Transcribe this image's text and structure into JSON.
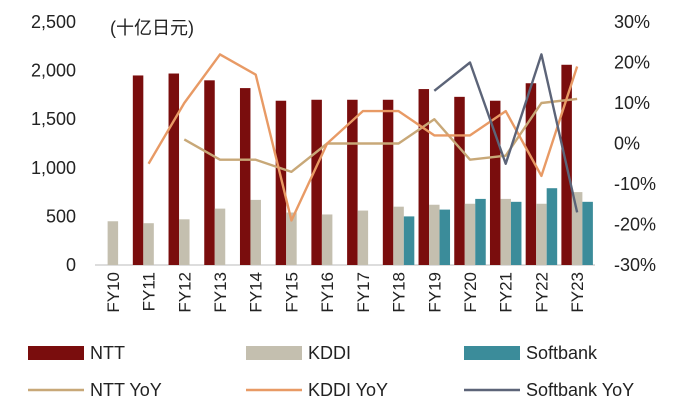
{
  "chart_data": {
    "type": "bar",
    "unit_label": "(十亿日元)",
    "categories": [
      "FY10",
      "FY11",
      "FY12",
      "FY13",
      "FY14",
      "FY15",
      "FY16",
      "FY17",
      "FY18",
      "FY19",
      "FY20",
      "FY21",
      "FY22",
      "FY23"
    ],
    "y_left": {
      "min": 0,
      "max": 2500,
      "ticks": [
        0,
        500,
        1000,
        1500,
        2000,
        2500
      ],
      "tick_labels": [
        "0",
        "500",
        "1,000",
        "1,500",
        "2,000",
        "2,500"
      ]
    },
    "y_right": {
      "min": -30,
      "max": 30,
      "ticks": [
        -30,
        -20,
        -10,
        0,
        10,
        20,
        30
      ],
      "tick_labels": [
        "-30%",
        "-20%",
        "-10%",
        "0%",
        "10%",
        "20%",
        "30%"
      ]
    },
    "colors": {
      "NTT": "#7a0d0d",
      "KDDI": "#c4bfaf",
      "Softbank": "#3b8c9a",
      "NTT YoY": "#c8a878",
      "KDDI YoY": "#e89a65",
      "Softbank YoY": "#5c6478"
    },
    "bar_series": [
      {
        "name": "NTT",
        "values": [
          null,
          1950,
          1970,
          1900,
          1820,
          1690,
          1700,
          1700,
          1700,
          1810,
          1730,
          1690,
          1870,
          2060
        ]
      },
      {
        "name": "KDDI",
        "values": [
          450,
          430,
          470,
          580,
          670,
          540,
          520,
          560,
          600,
          620,
          630,
          680,
          630,
          750
        ]
      },
      {
        "name": "Softbank",
        "values": [
          null,
          null,
          null,
          null,
          null,
          null,
          null,
          null,
          500,
          570,
          680,
          650,
          790,
          650
        ]
      }
    ],
    "line_series": [
      {
        "name": "NTT YoY",
        "values": [
          null,
          null,
          1,
          -4,
          -4,
          -7,
          0,
          0,
          0,
          6,
          -4,
          -3,
          10,
          11
        ]
      },
      {
        "name": "KDDI YoY",
        "values": [
          null,
          -5,
          10,
          22,
          17,
          -19,
          0,
          8,
          8,
          2,
          2,
          8,
          -8,
          19
        ]
      },
      {
        "name": "Softbank YoY",
        "values": [
          null,
          null,
          null,
          null,
          null,
          null,
          null,
          null,
          null,
          13,
          20,
          -5,
          22,
          -17
        ]
      }
    ],
    "legend": [
      "NTT",
      "KDDI",
      "Softbank",
      "NTT YoY",
      "KDDI YoY",
      "Softbank YoY"
    ],
    "legend_position": "bottom",
    "grid": false
  }
}
